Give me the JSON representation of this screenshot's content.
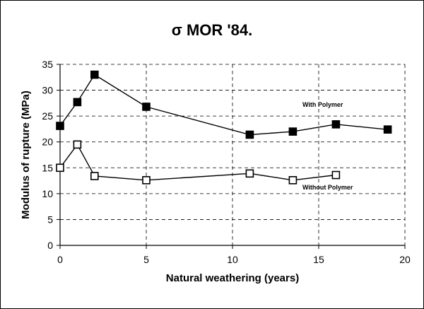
{
  "chart_data": {
    "type": "line",
    "title": "σ MOR '84.",
    "xlabel": "Natural weathering (years)",
    "ylabel": "Modulus of rupture (MPa)",
    "xlim": [
      0,
      20
    ],
    "ylim": [
      0,
      35
    ],
    "x_ticks": [
      "0",
      "5",
      "10",
      "15",
      "20"
    ],
    "y_ticks": [
      "0",
      "5",
      "10",
      "15",
      "20",
      "25",
      "30",
      "35"
    ],
    "grid": true,
    "series": [
      {
        "name": "With Polymer",
        "marker": "filled-square",
        "color": "#000000",
        "x": [
          0,
          1,
          2,
          5,
          11,
          13.5,
          16,
          19
        ],
        "y": [
          23.1,
          27.7,
          33.0,
          26.8,
          21.4,
          22.0,
          23.4,
          22.4
        ]
      },
      {
        "name": "Without Polymer",
        "marker": "open-square",
        "color": "#000000",
        "x": [
          0,
          1,
          2,
          5,
          11,
          13.5,
          16
        ],
        "y": [
          15.0,
          19.5,
          13.4,
          12.6,
          13.9,
          12.6,
          13.6
        ]
      }
    ]
  }
}
